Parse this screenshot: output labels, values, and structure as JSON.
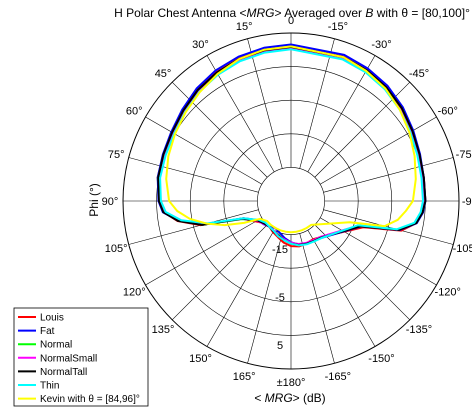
{
  "chart_data": {
    "type": "polar",
    "title_main": "H Polar Chest Antenna <",
    "title_em": "MRG",
    "title_tail": "> Averaged over  ",
    "title_b": "B",
    "title_end": " with θ = [80,100]°",
    "phi_label": "Phi (°)",
    "r_label_pre": "< ",
    "r_label_em": "MRG",
    "r_label_post": "> (dB)",
    "r_ticks": [
      "-15",
      "-5",
      "5"
    ],
    "r_range": [
      -25,
      10
    ],
    "angle_ticks": [
      {
        "angle": 0,
        "label": "0"
      },
      {
        "angle": 15,
        "label": "15°"
      },
      {
        "angle": -15,
        "label": "-15°"
      },
      {
        "angle": 30,
        "label": "30°"
      },
      {
        "angle": -30,
        "label": "-30°"
      },
      {
        "angle": 45,
        "label": "45°"
      },
      {
        "angle": -45,
        "label": "-45°"
      },
      {
        "angle": 60,
        "label": "60°"
      },
      {
        "angle": -60,
        "label": "-60°"
      },
      {
        "angle": 75,
        "label": "75°"
      },
      {
        "angle": -75,
        "label": "-75°"
      },
      {
        "angle": 90,
        "label": "90°"
      },
      {
        "angle": -90,
        "label": "-90°"
      },
      {
        "angle": 105,
        "label": "105°"
      },
      {
        "angle": -105,
        "label": "-105°"
      },
      {
        "angle": 120,
        "label": "120°"
      },
      {
        "angle": -120,
        "label": "-120°"
      },
      {
        "angle": 135,
        "label": "135°"
      },
      {
        "angle": -135,
        "label": "-135°"
      },
      {
        "angle": 150,
        "label": "150°"
      },
      {
        "angle": -150,
        "label": "-150°"
      },
      {
        "angle": 165,
        "label": "165°"
      },
      {
        "angle": -165,
        "label": "-165°"
      },
      {
        "angle": 180,
        "label": "±180°"
      }
    ],
    "legend_position": "bottom-left",
    "series": [
      {
        "name": "Louis",
        "color": "#ff0000",
        "r": [
          7.2,
          7.0,
          6.6,
          6.0,
          5.3,
          4.3,
          3.6,
          3.3,
          3.2,
          2.4,
          1.6,
          -1.0,
          -5.5,
          -14.5,
          -15.5,
          -16.5,
          -17.8,
          -18,
          -17.5,
          -17,
          -16.2,
          -15.6,
          -15.4,
          -15.6,
          -15.8,
          -15.2,
          -9,
          -1.2,
          1.5,
          2.4,
          3.0,
          3.1,
          3.5,
          4.2,
          5.2,
          6.0,
          6.5,
          7.0
        ]
      },
      {
        "name": "Fat",
        "color": "#0000ff",
        "r": [
          7.6,
          7.4,
          7.0,
          6.4,
          5.6,
          4.6,
          3.8,
          3.4,
          3.2,
          2.6,
          1.8,
          -1.2,
          -6,
          -14.5,
          -16,
          -17,
          -17.5,
          -18,
          -18.5,
          -18,
          -17.2,
          -16.4,
          -15.8,
          -15.6,
          -15.5,
          -15,
          -9.5,
          -1.6,
          1.6,
          2.6,
          3.0,
          3.1,
          3.6,
          4.4,
          5.4,
          6.3,
          6.9,
          7.4
        ]
      },
      {
        "name": "Normal",
        "color": "#00ff00",
        "r": [
          7.0,
          6.8,
          6.4,
          5.8,
          5.1,
          4.2,
          3.5,
          3.2,
          3.1,
          2.4,
          1.5,
          -1.3,
          -6,
          -14,
          -15.8,
          -17,
          -17.8,
          -18,
          -17.8,
          -17.5,
          -16.8,
          -16.2,
          -15.8,
          -15.6,
          -15.6,
          -15.2,
          -9.8,
          -1.8,
          1.4,
          2.4,
          2.9,
          3.0,
          3.4,
          4.1,
          5.0,
          5.8,
          6.4,
          6.8
        ]
      },
      {
        "name": "NormalSmall",
        "color": "#ff00ff",
        "r": [
          6.9,
          6.7,
          6.3,
          5.7,
          5.0,
          4.1,
          3.4,
          3.1,
          3.0,
          2.3,
          1.4,
          -1.5,
          -6.5,
          -14.2,
          -15.6,
          -16.8,
          -17.6,
          -18,
          -17.9,
          -17.4,
          -16.9,
          -16.3,
          -15.9,
          -15.7,
          -15.6,
          -15.3,
          -10,
          -1.9,
          1.3,
          2.3,
          2.8,
          2.9,
          3.3,
          4.0,
          4.9,
          5.7,
          6.3,
          6.7
        ]
      },
      {
        "name": "NormalTall",
        "color": "#000000",
        "r": [
          7.1,
          6.9,
          6.5,
          5.9,
          5.2,
          4.3,
          3.6,
          3.3,
          3.1,
          2.5,
          1.7,
          -1.1,
          -5.8,
          -14.3,
          -15.7,
          -16.9,
          -17.7,
          -18,
          -17.7,
          -17.3,
          -16.7,
          -16.1,
          -15.7,
          -15.5,
          -15.4,
          -15.1,
          -9.6,
          -1.7,
          1.5,
          2.5,
          3.0,
          3.1,
          3.5,
          4.2,
          5.1,
          5.9,
          6.5,
          6.9
        ]
      },
      {
        "name": "Thin",
        "color": "#00ffff",
        "r": [
          6.6,
          6.4,
          6.0,
          5.4,
          4.7,
          3.8,
          3.1,
          2.8,
          2.7,
          2.1,
          1.2,
          -1.8,
          -7,
          -14.5,
          -16,
          -17.2,
          -18,
          -18,
          -17.8,
          -17.2,
          -16.7,
          -16.1,
          -15.6,
          -15.4,
          -15.3,
          -15.0,
          -10.2,
          -2.2,
          1.1,
          2.1,
          2.5,
          2.6,
          3.0,
          3.7,
          4.6,
          5.4,
          6.0,
          6.4
        ]
      },
      {
        "name": "Kevin with θ = [84,96]°",
        "color": "#ffff00",
        "r": [
          7.2,
          7.0,
          6.5,
          5.6,
          4.6,
          3.7,
          2.9,
          2.2,
          1.4,
          0.4,
          -1.2,
          -3.6,
          -6.8,
          -10.3,
          -14.2,
          -17.6,
          -18.5,
          -18.5,
          -18.5,
          -18.5,
          -18.5,
          -18.5,
          -18.5,
          -18.5,
          -18.5,
          -18.5,
          -12,
          -4.8,
          -2.4,
          -1.0,
          0.4,
          1.4,
          2.4,
          3.5,
          4.6,
          5.6,
          6.3,
          6.9
        ]
      }
    ],
    "phi_grid": [
      0,
      10,
      20,
      30,
      40,
      50,
      60,
      70,
      80,
      90,
      95,
      100,
      105,
      110,
      115,
      120,
      130,
      140,
      150,
      160,
      170,
      180,
      190,
      200,
      210,
      220,
      250,
      255,
      260,
      265,
      270,
      280,
      290,
      300,
      310,
      320,
      330,
      340
    ]
  }
}
